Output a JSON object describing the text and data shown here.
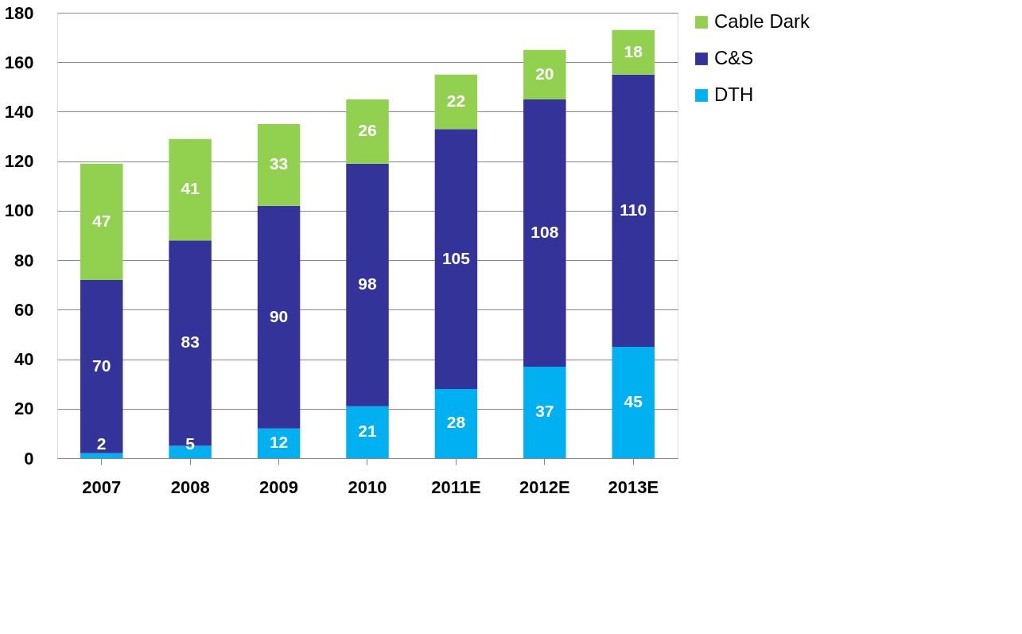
{
  "chart_data": {
    "type": "bar",
    "stacked": true,
    "categories": [
      "2007",
      "2008",
      "2009",
      "2010",
      "2011E",
      "2012E",
      "2013E"
    ],
    "series": [
      {
        "name": "DTH",
        "color": "#00b0f0",
        "values": [
          2,
          5,
          12,
          21,
          28,
          37,
          45
        ]
      },
      {
        "name": "C&S",
        "color": "#333399",
        "values": [
          70,
          83,
          90,
          98,
          105,
          108,
          110
        ]
      },
      {
        "name": "Cable Dark",
        "color": "#92d050",
        "values": [
          47,
          41,
          33,
          26,
          22,
          20,
          18
        ]
      }
    ],
    "ylim": [
      0,
      180
    ],
    "yticks": [
      0,
      20,
      40,
      60,
      80,
      100,
      120,
      140,
      160,
      180
    ],
    "grid": "y",
    "legend": "right",
    "data_labels": true
  }
}
